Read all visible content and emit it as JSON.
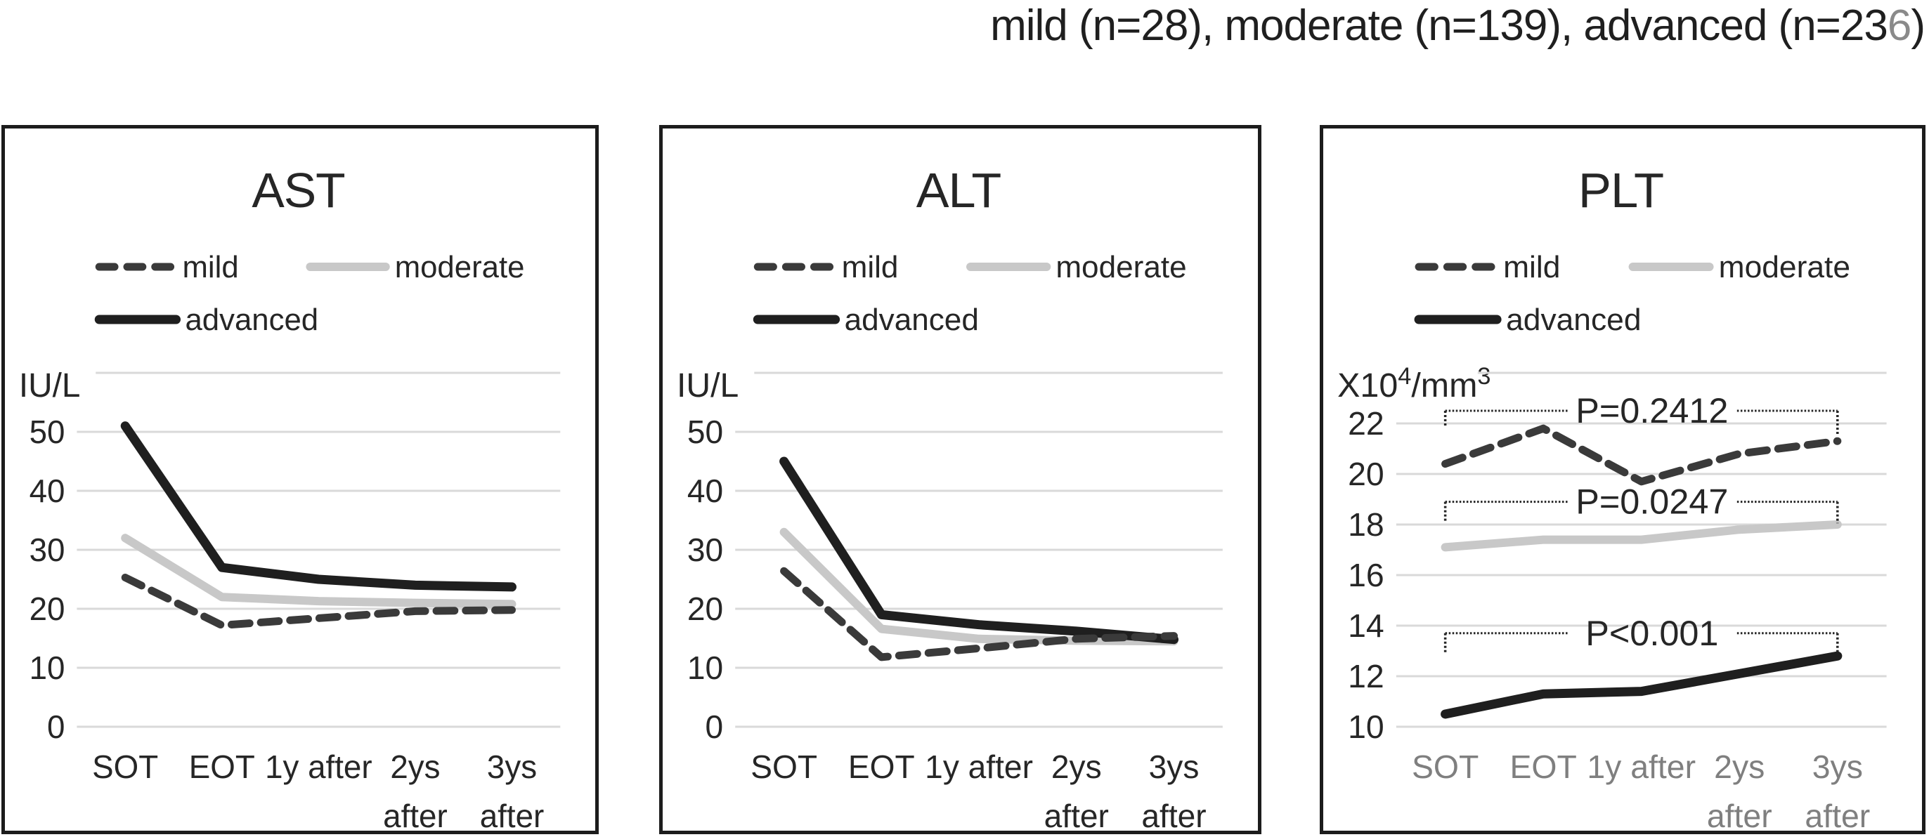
{
  "figure_title": {
    "prefix": "mild (n=28), moderate (n=139), advanced (n=23",
    "gray_char": "6",
    "suffix": ")"
  },
  "colors": {
    "ink": "#262626",
    "mild_line": "#3a3a3a",
    "moderate_line": "#c8c8c8",
    "advanced_line": "#1f1f1f",
    "gridline": "#d9d9d9",
    "plt_x_tick": "#7f7f7f",
    "title_gray_char": "#8a8a8a"
  },
  "chart_data": [
    {
      "type": "line",
      "title": "AST",
      "unit_parts": [
        {
          "t": "IU/L",
          "sup": false
        }
      ],
      "y_axis": {
        "min": 0,
        "max": 60,
        "gridline_step": 10,
        "tick_labels": [
          "0",
          "10",
          "20",
          "30",
          "40",
          "50"
        ],
        "top_gridline_unlabeled": true
      },
      "categories": [
        "SOT",
        "EOT",
        "1y after",
        "2ys after",
        "3ys after"
      ],
      "category_lines": [
        [
          "SOT"
        ],
        [
          "EOT"
        ],
        [
          "1y after"
        ],
        [
          "2ys",
          "after"
        ],
        [
          "3ys",
          "after"
        ]
      ],
      "x_tick_color": "#262626",
      "legend": [
        {
          "name": "mild",
          "style": "dashed"
        },
        {
          "name": "moderate",
          "style": "solid-gray"
        },
        {
          "name": "advanced",
          "style": "solid-black"
        }
      ],
      "series": [
        {
          "name": "mild",
          "values": [
            25.3,
            17.2,
            18.4,
            19.6,
            19.8
          ]
        },
        {
          "name": "moderate",
          "values": [
            32,
            22,
            21.3,
            21,
            20.8
          ]
        },
        {
          "name": "advanced",
          "values": [
            51,
            27,
            25,
            24,
            23.7
          ]
        }
      ],
      "p_annotations": []
    },
    {
      "type": "line",
      "title": "ALT",
      "unit_parts": [
        {
          "t": "IU/L",
          "sup": false
        }
      ],
      "y_axis": {
        "min": 0,
        "max": 60,
        "gridline_step": 10,
        "tick_labels": [
          "0",
          "10",
          "20",
          "30",
          "40",
          "50"
        ],
        "top_gridline_unlabeled": true
      },
      "categories": [
        "SOT",
        "EOT",
        "1y after",
        "2ys after",
        "3ys after"
      ],
      "category_lines": [
        [
          "SOT"
        ],
        [
          "EOT"
        ],
        [
          "1y after"
        ],
        [
          "2ys",
          "after"
        ],
        [
          "3ys",
          "after"
        ]
      ],
      "x_tick_color": "#262626",
      "legend": [
        {
          "name": "mild",
          "style": "dashed"
        },
        {
          "name": "moderate",
          "style": "solid-gray"
        },
        {
          "name": "advanced",
          "style": "solid-black"
        }
      ],
      "series": [
        {
          "name": "mild",
          "values": [
            26.4,
            11.8,
            13.3,
            14.9,
            15.4
          ]
        },
        {
          "name": "moderate",
          "values": [
            33,
            16.6,
            14.9,
            14.6,
            14.5
          ]
        },
        {
          "name": "advanced",
          "values": [
            45,
            19,
            17.3,
            16.2,
            14.8
          ]
        }
      ],
      "p_annotations": []
    },
    {
      "type": "line",
      "title": "PLT",
      "unit_parts": [
        {
          "t": "X10",
          "sup": false
        },
        {
          "t": "4",
          "sup": true
        },
        {
          "t": "/mm",
          "sup": false
        },
        {
          "t": "3",
          "sup": true
        }
      ],
      "y_axis": {
        "min": 10,
        "max": 24,
        "gridline_step": 2,
        "tick_labels": [
          "10",
          "12",
          "14",
          "16",
          "18",
          "20",
          "22"
        ],
        "top_gridline_unlabeled": true
      },
      "categories": [
        "SOT",
        "EOT",
        "1y after",
        "2ys after",
        "3ys after"
      ],
      "category_lines": [
        [
          "SOT"
        ],
        [
          "EOT"
        ],
        [
          "1y after"
        ],
        [
          "2ys",
          "after"
        ],
        [
          "3ys",
          "after"
        ]
      ],
      "x_tick_color": "#7f7f7f",
      "legend": [
        {
          "name": "mild",
          "style": "dashed"
        },
        {
          "name": "moderate",
          "style": "solid-gray"
        },
        {
          "name": "advanced",
          "style": "solid-black"
        }
      ],
      "series": [
        {
          "name": "mild",
          "values": [
            20.4,
            21.8,
            19.7,
            20.8,
            21.3
          ]
        },
        {
          "name": "moderate",
          "values": [
            17.1,
            17.4,
            17.4,
            17.8,
            18.0
          ]
        },
        {
          "name": "advanced",
          "values": [
            10.5,
            11.3,
            11.4,
            12.1,
            12.8
          ]
        }
      ],
      "p_annotations": [
        {
          "label": "P=0.2412",
          "series": "mild",
          "bracket_y": 22.5,
          "left_tick_bottom": 21.9,
          "right_tick_bottom": 21.55
        },
        {
          "label": "P=0.0247",
          "series": "moderate",
          "bracket_y": 18.9,
          "left_tick_bottom": 18.15,
          "right_tick_bottom": 18.05
        },
        {
          "label": "P<0.001",
          "series": "advanced",
          "bracket_y": 13.7,
          "left_tick_bottom": 12.95,
          "right_tick_bottom": 12.95
        }
      ]
    }
  ]
}
